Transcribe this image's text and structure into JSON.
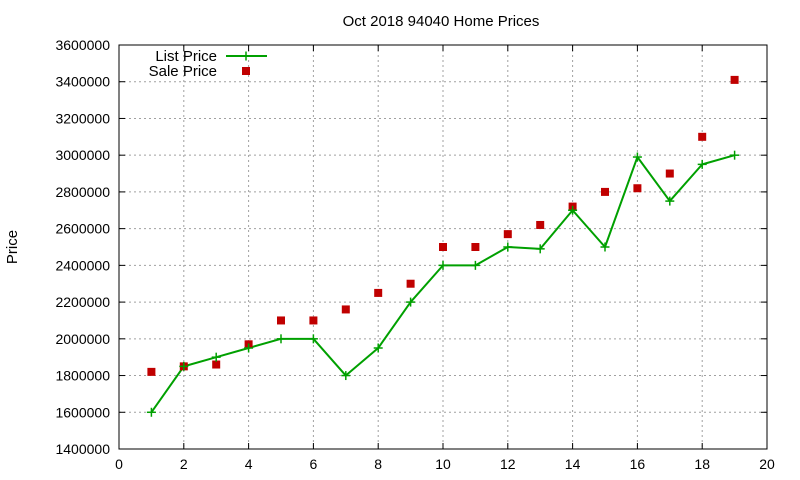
{
  "chart_data": {
    "type": "line",
    "title": "Oct 2018 94040 Home Prices",
    "xlabel": "",
    "ylabel": "Price",
    "xlim": [
      0,
      20
    ],
    "ylim": [
      1400000,
      3600000
    ],
    "x_ticks": [
      0,
      2,
      4,
      6,
      8,
      10,
      12,
      14,
      16,
      18,
      20
    ],
    "y_ticks": [
      1400000,
      1600000,
      1800000,
      2000000,
      2200000,
      2400000,
      2600000,
      2800000,
      3000000,
      3200000,
      3400000,
      3600000
    ],
    "grid": true,
    "legend_position": "top-left",
    "series": [
      {
        "name": "List Price",
        "style": "line-plus",
        "color": "#00a000",
        "x": [
          1,
          2,
          3,
          4,
          5,
          6,
          7,
          8,
          9,
          10,
          11,
          12,
          13,
          14,
          15,
          16,
          17,
          18,
          19
        ],
        "values": [
          1600000,
          1850000,
          1900000,
          1950000,
          2000000,
          2000000,
          1800000,
          1950000,
          2200000,
          2400000,
          2400000,
          2500000,
          2490000,
          2700000,
          2500000,
          2990000,
          2750000,
          2950000,
          3000000
        ]
      },
      {
        "name": "Sale Price",
        "style": "square-points",
        "color": "#c00000",
        "x": [
          1,
          2,
          3,
          4,
          5,
          6,
          7,
          8,
          9,
          10,
          11,
          12,
          13,
          14,
          15,
          16,
          17,
          18,
          19
        ],
        "values": [
          1820000,
          1850000,
          1860000,
          1970000,
          2100000,
          2100000,
          2160000,
          2250000,
          2300000,
          2500000,
          2500000,
          2570000,
          2620000,
          2720000,
          2800000,
          2820000,
          2900000,
          3100000,
          3410000
        ]
      }
    ]
  }
}
